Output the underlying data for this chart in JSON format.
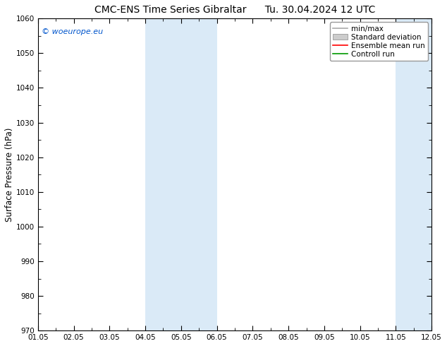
{
  "title_left": "CMC-ENS Time Series Gibraltar",
  "title_right": "Tu. 30.04.2024 12 UTC",
  "ylabel": "Surface Pressure (hPa)",
  "ylim": [
    970,
    1060
  ],
  "yticks": [
    970,
    980,
    990,
    1000,
    1010,
    1020,
    1030,
    1040,
    1050,
    1060
  ],
  "x_labels": [
    "01.05",
    "02.05",
    "03.05",
    "04.05",
    "05.05",
    "06.05",
    "07.05",
    "08.05",
    "09.05",
    "10.05",
    "11.05",
    "12.05"
  ],
  "x_positions": [
    0,
    1,
    2,
    3,
    4,
    5,
    6,
    7,
    8,
    9,
    10,
    11
  ],
  "xlim": [
    0,
    11
  ],
  "shaded_bands": [
    {
      "x_start": 3.0,
      "x_end": 4.0,
      "color": "#daeaf7"
    },
    {
      "x_start": 4.0,
      "x_end": 5.0,
      "color": "#daeaf7"
    },
    {
      "x_start": 10.0,
      "x_end": 11.0,
      "color": "#daeaf7"
    }
  ],
  "watermark": "© woeurope.eu",
  "watermark_color": "#0055cc",
  "legend_labels": [
    "min/max",
    "Standard deviation",
    "Ensemble mean run",
    "Controll run"
  ],
  "legend_line_colors": [
    "#aaaaaa",
    "#cccccc",
    "#ff0000",
    "#009900"
  ],
  "background_color": "#ffffff",
  "plot_bg_color": "#ffffff",
  "title_fontsize": 10,
  "tick_fontsize": 7.5,
  "ylabel_fontsize": 8.5
}
